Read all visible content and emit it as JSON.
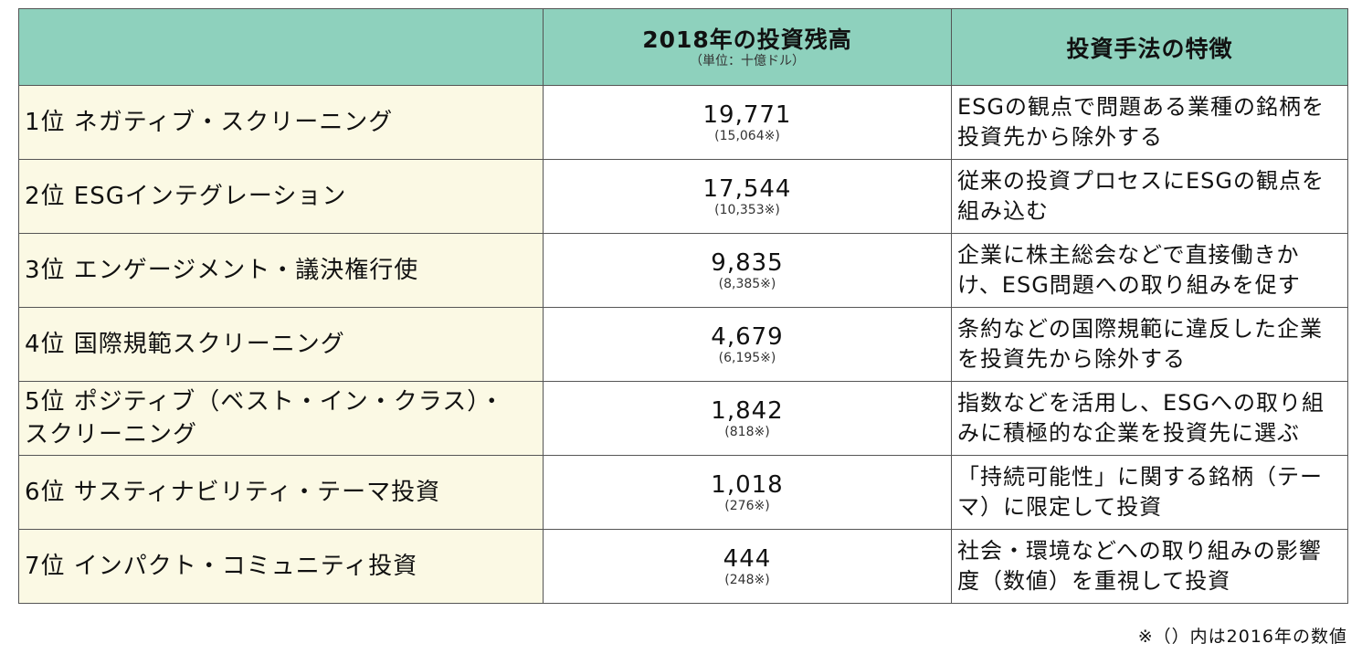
{
  "header": {
    "amount_title": "2018年の投資残高",
    "amount_unit": "（単位：十億ドル）",
    "desc_title": "投資手法の特徴"
  },
  "rows": [
    {
      "name": "1位 ネガティブ・スクリーニング",
      "amount": "19,771",
      "amount_2016": "(15,064※)",
      "description": "ESGの観点で問題ある業種の銘柄を投資先から除外する"
    },
    {
      "name": "2位 ESGインテグレーション",
      "amount": "17,544",
      "amount_2016": "(10,353※)",
      "description": "従来の投資プロセスにESGの観点を組み込む"
    },
    {
      "name": "3位 エンゲージメント・議決権行使",
      "amount": "9,835",
      "amount_2016": "(8,385※)",
      "description": "企業に株主総会などで直接働きかけ、ESG問題への取り組みを促す"
    },
    {
      "name": "4位 国際規範スクリーニング",
      "amount": "4,679",
      "amount_2016": "(6,195※)",
      "description": "条約などの国際規範に違反した企業を投資先から除外する"
    },
    {
      "name": "5位 ポジティブ（ベスト・イン・クラス）・スクリーニング",
      "amount": "1,842",
      "amount_2016": "(818※)",
      "description": "指数などを活用し、ESGへの取り組みに積極的な企業を投資先に選ぶ"
    },
    {
      "name": "6位 サスティナビリティ・テーマ投資",
      "amount": "1,018",
      "amount_2016": "(276※)",
      "description": "「持続可能性」に関する銘柄（テーマ）に限定して投資"
    },
    {
      "name": "7位 インパクト・コミュニティ投資",
      "amount": "444",
      "amount_2016": "(248※)",
      "description": "社会・環境などへの取り組みの影響度（数値）を重視して投資"
    }
  ],
  "footnote": "※（）内は2016年の数値",
  "colors": {
    "header_bg": "#8ed1bd",
    "name_cell_bg": "#fbf9e4",
    "border": "#555555"
  }
}
